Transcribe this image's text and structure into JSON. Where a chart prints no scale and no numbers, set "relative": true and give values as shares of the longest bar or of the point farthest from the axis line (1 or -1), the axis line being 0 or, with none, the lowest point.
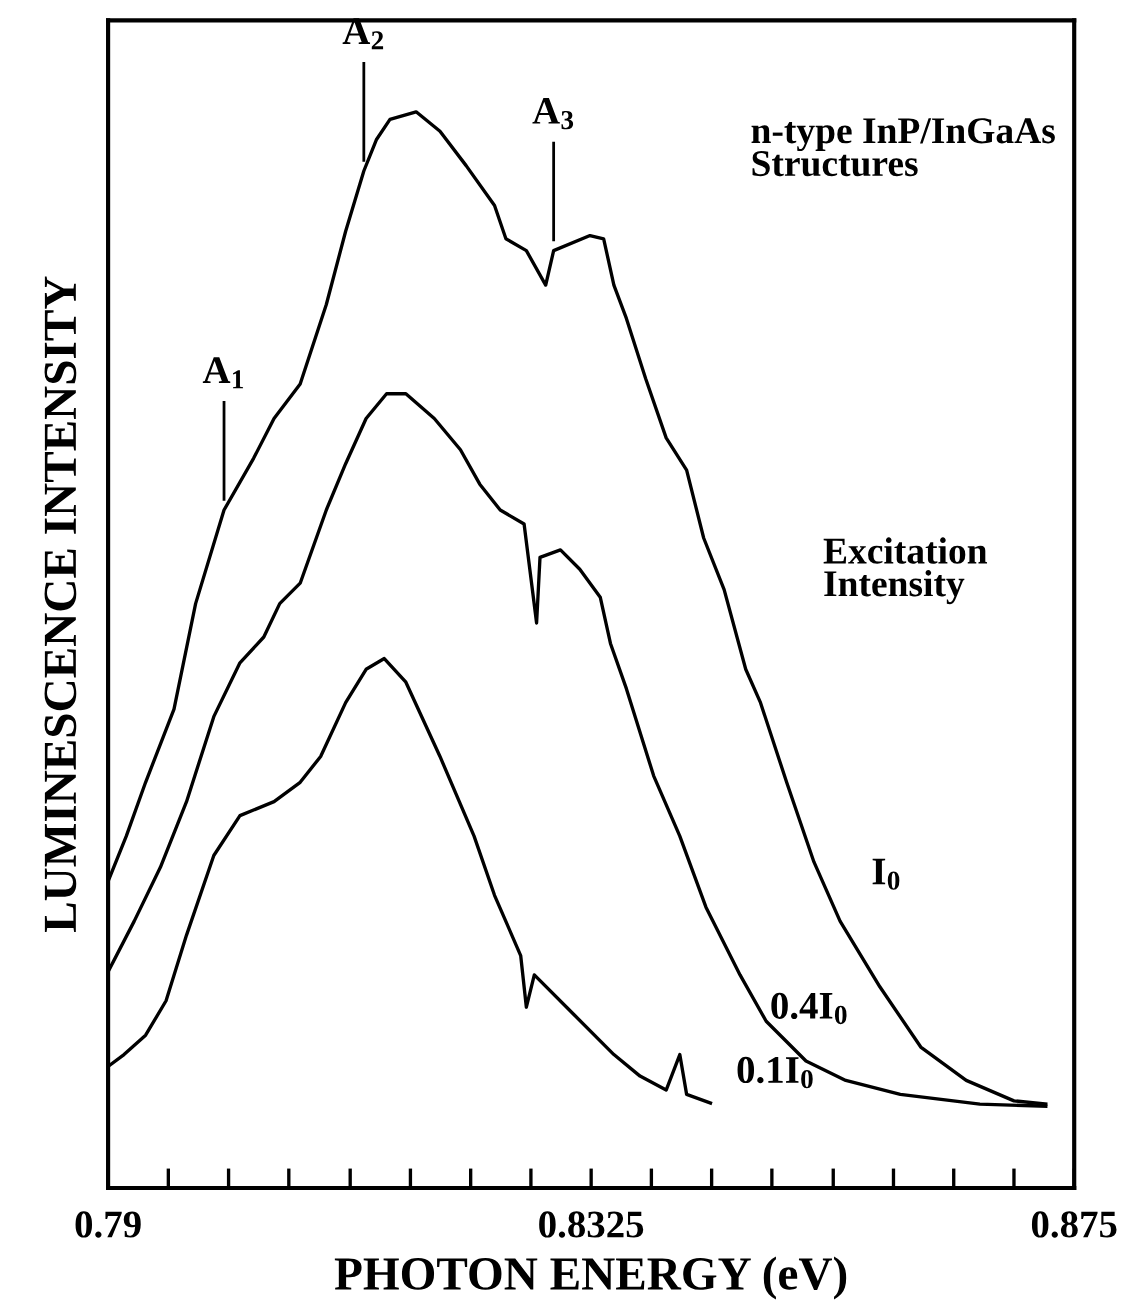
{
  "chart_data": {
    "type": "line",
    "xlabel": "PHOTON ENERGY (eV)",
    "ylabel": "LUMINESCENCE INTENSITY",
    "relative": true,
    "xlim": [
      0.79,
      0.875
    ],
    "xticks": [
      0.79,
      {
        "value": 0.7953,
        "label": null
      },
      {
        "value": 0.8006,
        "label": null
      },
      {
        "value": 0.8059,
        "label": null
      },
      {
        "value": 0.8113,
        "label": null
      },
      {
        "value": 0.8166,
        "label": null
      },
      {
        "value": 0.8219,
        "label": null
      },
      {
        "value": 0.8272,
        "label": null
      },
      0.8325,
      {
        "value": 0.8378,
        "label": null
      },
      {
        "value": 0.8431,
        "label": null
      },
      {
        "value": 0.8484,
        "label": null
      },
      {
        "value": 0.8538,
        "label": null
      },
      {
        "value": 0.8591,
        "label": null
      },
      {
        "value": 0.8644,
        "label": null
      },
      {
        "value": 0.8697,
        "label": null
      },
      0.875
    ],
    "tick_labels": "x",
    "grid": false,
    "legend": false,
    "marker": "none",
    "line_style": "solid",
    "series": [
      {
        "name": "I$_{0}$",
        "color": "#000000",
        "x": [
          0.79,
          0.7916,
          0.7933,
          0.7958,
          0.7977,
          0.8002,
          0.8028,
          0.8046,
          0.8069,
          0.8092,
          0.8109,
          0.8125,
          0.8136,
          0.8148,
          0.8171,
          0.8192,
          0.8215,
          0.824,
          0.825,
          0.8268,
          0.8285,
          0.8292,
          0.8324,
          0.8336,
          0.8345,
          0.8356,
          0.8373,
          0.8391,
          0.8409,
          0.8424,
          0.8442,
          0.8461,
          0.8474,
          0.8497,
          0.8521,
          0.8544,
          0.8579,
          0.8615,
          0.8655,
          0.8697,
          0.8725
        ],
        "values": [
          0.285,
          0.327,
          0.377,
          0.445,
          0.543,
          0.63,
          0.678,
          0.715,
          0.747,
          0.821,
          0.889,
          0.945,
          0.974,
          0.993,
          1.0,
          0.982,
          0.95,
          0.913,
          0.882,
          0.871,
          0.839,
          0.871,
          0.885,
          0.882,
          0.839,
          0.808,
          0.752,
          0.697,
          0.667,
          0.604,
          0.556,
          0.482,
          0.451,
          0.377,
          0.303,
          0.248,
          0.187,
          0.131,
          0.1,
          0.081,
          0.078
        ]
      },
      {
        "name": "0.4I$_{0}$",
        "color": "#000000",
        "x": [
          0.79,
          0.7923,
          0.7946,
          0.7969,
          0.7993,
          0.8016,
          0.8037,
          0.8051,
          0.8069,
          0.8092,
          0.8109,
          0.8127,
          0.8145,
          0.8162,
          0.8187,
          0.821,
          0.8227,
          0.8245,
          0.8266,
          0.8277,
          0.828,
          0.8298,
          0.8315,
          0.8333,
          0.8342,
          0.8356,
          0.838,
          0.8403,
          0.8426,
          0.8456,
          0.8479,
          0.8514,
          0.8549,
          0.8597,
          0.8667,
          0.8725
        ],
        "values": [
          0.201,
          0.248,
          0.298,
          0.359,
          0.438,
          0.488,
          0.512,
          0.543,
          0.562,
          0.63,
          0.673,
          0.715,
          0.738,
          0.738,
          0.715,
          0.686,
          0.654,
          0.63,
          0.617,
          0.525,
          0.586,
          0.593,
          0.575,
          0.549,
          0.506,
          0.464,
          0.383,
          0.327,
          0.261,
          0.198,
          0.155,
          0.118,
          0.1,
          0.087,
          0.078,
          0.076
        ]
      },
      {
        "name": "0.1I$_{0}$",
        "color": "#000000",
        "x": [
          0.79,
          0.7914,
          0.7933,
          0.7951,
          0.7969,
          0.7993,
          0.8016,
          0.8046,
          0.8069,
          0.8087,
          0.8109,
          0.8127,
          0.8143,
          0.8162,
          0.8192,
          0.8222,
          0.824,
          0.8263,
          0.8268,
          0.8275,
          0.831,
          0.8345,
          0.8368,
          0.8391,
          0.8403,
          0.8409,
          0.843
        ],
        "values": [
          0.113,
          0.124,
          0.142,
          0.174,
          0.235,
          0.309,
          0.346,
          0.359,
          0.377,
          0.401,
          0.451,
          0.482,
          0.492,
          0.47,
          0.401,
          0.327,
          0.272,
          0.216,
          0.168,
          0.198,
          0.161,
          0.124,
          0.104,
          0.091,
          0.124,
          0.087,
          0.079
        ]
      }
    ],
    "annotations": [
      {
        "text": "A$_{1}$",
        "x": 0.8002,
        "y": 0.63
      },
      {
        "text": "A$_{2}$",
        "x": 0.8125,
        "y": 0.945
      },
      {
        "text": "A$_{3}$",
        "x": 0.8292,
        "y": 0.871
      },
      "n-type InP/InGaAs\nStructures",
      "Excitation\nIntensity"
    ]
  }
}
